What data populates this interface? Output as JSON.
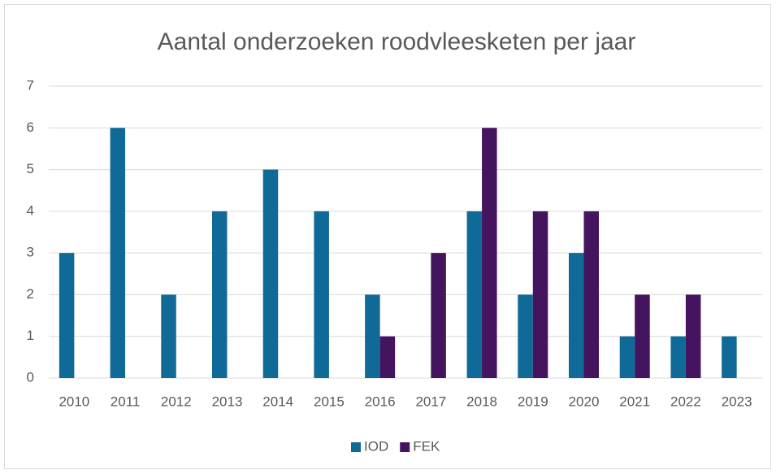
{
  "chart_data": {
    "type": "bar",
    "title": "Aantal onderzoeken roodvleesketen per jaar",
    "categories": [
      "2010",
      "2011",
      "2012",
      "2013",
      "2014",
      "2015",
      "2016",
      "2017",
      "2018",
      "2019",
      "2020",
      "2021",
      "2022",
      "2023"
    ],
    "series": [
      {
        "name": "IOD",
        "color": "#0f6a98",
        "values": [
          3,
          6,
          2,
          4,
          5,
          4,
          2,
          0,
          4,
          2,
          3,
          1,
          1,
          1
        ]
      },
      {
        "name": "FEK",
        "color": "#44145e",
        "values": [
          0,
          0,
          0,
          0,
          0,
          0,
          1,
          3,
          6,
          4,
          4,
          2,
          2,
          0
        ]
      }
    ],
    "ylim": [
      0,
      7
    ],
    "yticks": [
      0,
      1,
      2,
      3,
      4,
      5,
      6,
      7
    ],
    "grid": true,
    "legend": "bottom"
  }
}
